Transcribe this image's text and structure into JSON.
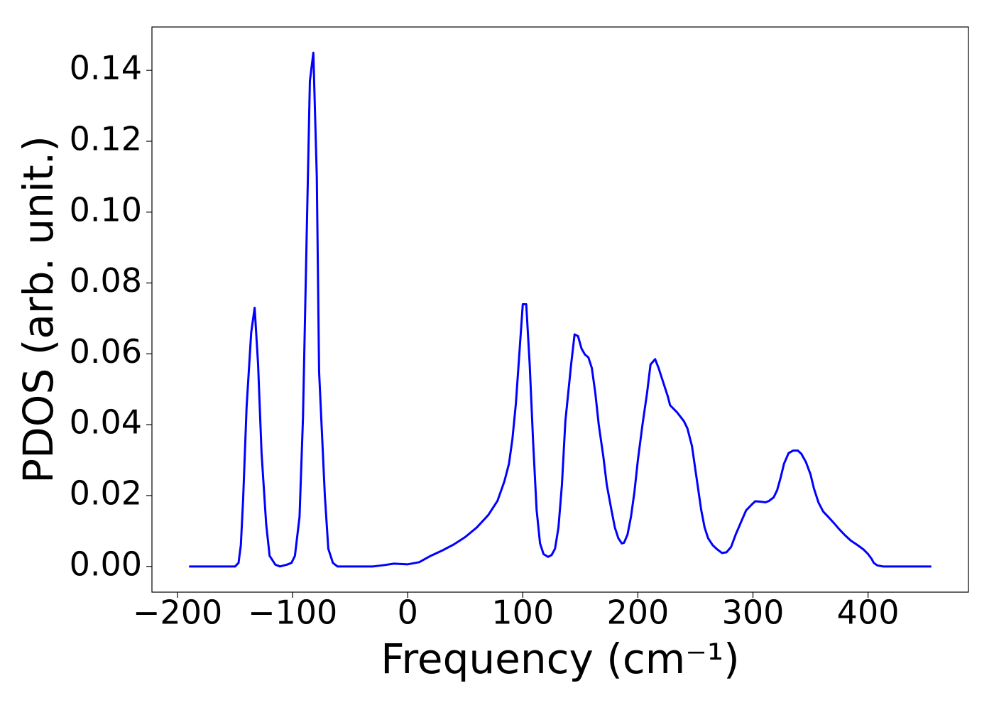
{
  "chart_data": {
    "type": "line",
    "xlabel": "Frequency (cm⁻¹)",
    "ylabel": "PDOS (arb. unit.)",
    "x": [
      -190,
      -150,
      -147,
      -145,
      -143,
      -140,
      -136,
      -133,
      -130,
      -127,
      -123,
      -120,
      -115,
      -111,
      -105,
      -101,
      -98,
      -94,
      -91,
      -88,
      -85,
      -82,
      -79,
      -77,
      -72,
      -69,
      -65,
      -61,
      -30,
      -20,
      -12,
      0,
      10,
      20,
      30,
      40,
      50,
      60,
      70,
      78,
      84,
      88,
      91,
      94,
      97,
      100,
      103,
      106,
      109,
      112,
      115,
      118,
      122,
      125,
      128,
      131,
      134,
      137,
      142,
      145,
      148,
      151,
      154,
      157,
      160,
      163,
      166,
      170,
      173,
      177,
      180,
      183,
      186,
      188,
      191,
      194,
      197,
      200,
      204,
      208,
      211,
      215,
      218,
      222,
      226,
      228,
      234,
      240,
      243,
      247,
      251,
      255,
      258,
      261,
      265,
      269,
      273,
      277,
      281,
      285,
      290,
      294,
      299,
      302,
      306,
      311,
      314,
      318,
      321,
      324,
      327,
      331,
      335,
      339,
      342,
      346,
      350,
      353,
      357,
      361,
      366,
      371,
      375,
      380,
      385,
      391,
      396,
      400,
      403,
      405,
      408,
      413,
      455
    ],
    "series": [
      {
        "color": "#0000ff",
        "values": [
          0,
          0,
          0.001,
          0.006,
          0.019,
          0.045,
          0.066,
          0.073,
          0.057,
          0.032,
          0.012,
          0.003,
          0.0005,
          0,
          0.0005,
          0.001,
          0.003,
          0.014,
          0.042,
          0.09,
          0.137,
          0.145,
          0.11,
          0.055,
          0.02,
          0.005,
          0.001,
          0,
          0,
          0.0004,
          0.0008,
          0.0006,
          0.0012,
          0.003,
          0.0045,
          0.0062,
          0.0083,
          0.011,
          0.0145,
          0.0185,
          0.024,
          0.029,
          0.036,
          0.046,
          0.06,
          0.074,
          0.074,
          0.057,
          0.035,
          0.016,
          0.0065,
          0.0035,
          0.0027,
          0.0032,
          0.005,
          0.011,
          0.023,
          0.041,
          0.057,
          0.0655,
          0.065,
          0.0615,
          0.0598,
          0.059,
          0.056,
          0.049,
          0.04,
          0.031,
          0.023,
          0.016,
          0.011,
          0.008,
          0.0065,
          0.0067,
          0.009,
          0.014,
          0.021,
          0.03,
          0.04,
          0.049,
          0.057,
          0.0585,
          0.056,
          0.052,
          0.048,
          0.0455,
          0.0435,
          0.041,
          0.039,
          0.034,
          0.025,
          0.016,
          0.011,
          0.008,
          0.006,
          0.0048,
          0.0038,
          0.004,
          0.0055,
          0.009,
          0.0128,
          0.0158,
          0.0175,
          0.0184,
          0.0183,
          0.0181,
          0.0185,
          0.0195,
          0.0215,
          0.025,
          0.029,
          0.032,
          0.0327,
          0.0327,
          0.0318,
          0.0295,
          0.026,
          0.022,
          0.018,
          0.0155,
          0.0138,
          0.012,
          0.0105,
          0.0088,
          0.0073,
          0.006,
          0.0048,
          0.0035,
          0.0022,
          0.001,
          0.0003,
          0,
          0
        ]
      }
    ],
    "xlim": [
      -222.25,
      487.25
    ],
    "ylim": [
      -0.00725,
      0.15225
    ],
    "xticks": [
      {
        "value": -200,
        "label": "−200"
      },
      {
        "value": -100,
        "label": "−100"
      },
      0,
      100,
      200,
      300,
      400
    ],
    "yticks": [
      {
        "value": 0,
        "label": "0.00"
      },
      {
        "value": 0.02,
        "label": "0.02"
      },
      {
        "value": 0.04,
        "label": "0.04"
      },
      {
        "value": 0.06,
        "label": "0.06"
      },
      {
        "value": 0.08,
        "label": "0.08"
      },
      {
        "value": 0.1,
        "label": "0.10"
      },
      {
        "value": 0.12,
        "label": "0.12"
      },
      {
        "value": 0.14,
        "label": "0.14"
      }
    ],
    "grid": false
  }
}
